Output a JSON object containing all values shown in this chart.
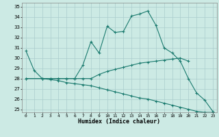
{
  "xlabel": "Humidex (Indice chaleur)",
  "bg_color": "#cceae4",
  "grid_color": "#aacccc",
  "line_color": "#1a7a6e",
  "xlim": [
    -0.5,
    23.5
  ],
  "ylim": [
    24.7,
    35.4
  ],
  "xticks": [
    0,
    1,
    2,
    3,
    4,
    5,
    6,
    7,
    8,
    9,
    10,
    11,
    12,
    13,
    14,
    15,
    16,
    17,
    18,
    19,
    20,
    21,
    22,
    23
  ],
  "yticks": [
    25,
    26,
    27,
    28,
    29,
    30,
    31,
    32,
    33,
    34,
    35
  ],
  "line1_x": [
    0,
    1,
    2,
    3,
    4,
    5,
    6,
    7,
    8,
    9,
    10,
    11,
    12,
    13,
    14,
    15,
    16,
    17,
    18,
    19,
    20,
    21,
    22,
    23
  ],
  "line1_y": [
    30.7,
    28.8,
    28.0,
    28.0,
    28.0,
    28.0,
    28.0,
    29.3,
    31.6,
    30.5,
    33.1,
    32.5,
    32.6,
    34.1,
    34.3,
    34.6,
    33.2,
    31.0,
    30.5,
    29.7,
    28.0,
    26.6,
    25.9,
    24.8
  ],
  "line2_x": [
    0,
    2,
    3,
    4,
    5,
    6,
    7,
    8,
    9,
    10,
    11,
    12,
    13,
    14,
    15,
    16,
    17,
    18,
    19,
    20
  ],
  "line2_y": [
    28.0,
    28.0,
    28.0,
    28.0,
    28.0,
    28.0,
    28.0,
    28.0,
    28.4,
    28.7,
    28.9,
    29.1,
    29.3,
    29.5,
    29.6,
    29.7,
    29.8,
    29.9,
    30.0,
    29.7
  ],
  "line3_x": [
    0,
    2,
    3,
    4,
    5,
    6,
    7,
    8,
    9,
    10,
    11,
    12,
    13,
    14,
    15,
    16,
    17,
    18,
    19,
    20,
    21,
    22,
    23
  ],
  "line3_y": [
    28.0,
    28.0,
    27.9,
    27.8,
    27.6,
    27.5,
    27.4,
    27.3,
    27.1,
    26.9,
    26.7,
    26.5,
    26.3,
    26.1,
    26.0,
    25.8,
    25.6,
    25.4,
    25.2,
    25.0,
    24.8,
    24.7,
    24.7
  ]
}
